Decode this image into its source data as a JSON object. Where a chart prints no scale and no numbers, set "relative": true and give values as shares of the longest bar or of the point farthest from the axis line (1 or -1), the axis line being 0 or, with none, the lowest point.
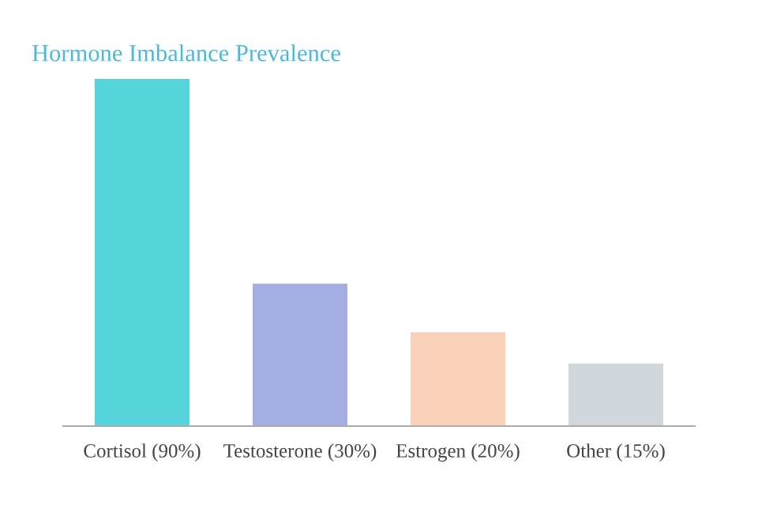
{
  "chart_data": {
    "type": "bar",
    "title": "Hormone Imbalance Prevalence",
    "categories": [
      "Cortisol (90%)",
      "Testosterone (30%)",
      "Estrogen (20%)",
      "Other (15%)"
    ],
    "values": [
      1,
      0.41,
      0.27,
      0.18
    ],
    "colors": [
      "#56d6dc",
      "#a5aee2",
      "#fad0b8",
      "#d0d7da"
    ],
    "relative": true,
    "grid": false,
    "legend": false
  }
}
